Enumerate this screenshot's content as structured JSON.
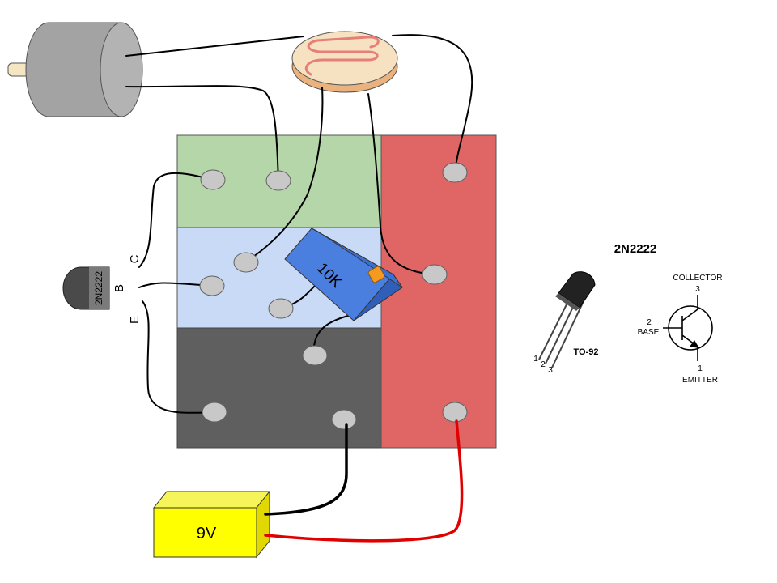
{
  "transistor": {
    "part": "2N2222",
    "pin_c": "C",
    "pin_b": "B",
    "pin_e": "E"
  },
  "potentiometer": {
    "value": "10K"
  },
  "battery": {
    "label": "9V"
  },
  "reference": {
    "title": "2N2222",
    "package": "TO-92",
    "pin1": "1",
    "pin2": "2",
    "pin3": "3",
    "collector_num": "3",
    "collector": "COLLECTOR",
    "base_num": "2",
    "base": "BASE",
    "emitter_num": "1",
    "emitter": "EMITTER"
  },
  "colors": {
    "green_region": "#b5d6a8",
    "blue_region": "#c9daf6",
    "dark_region": "#5f5f5f",
    "red_region": "#e06565",
    "pot_body": "#4a7fe0",
    "pot_knob": "#f59a1e",
    "battery": "#ffff00",
    "motor": "#a3a3a3",
    "ldr": "#f6e2c1",
    "ldr_trace": "#e57f78",
    "red_wire": "#e00000"
  }
}
